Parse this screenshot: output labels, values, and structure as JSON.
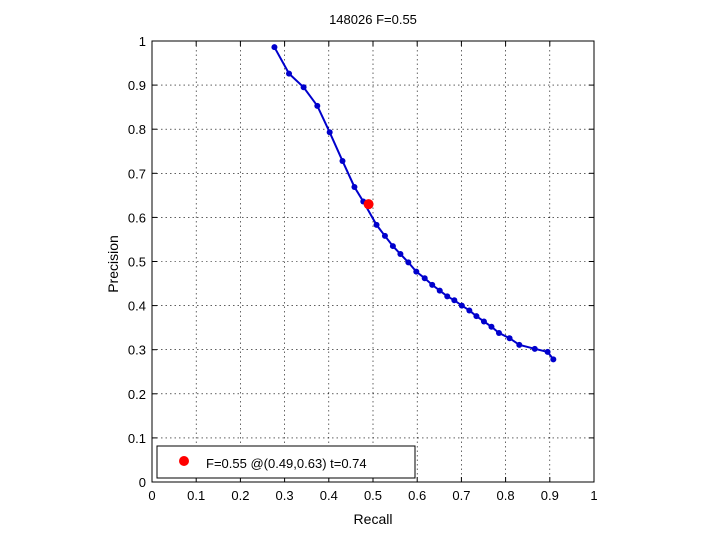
{
  "chart_data": {
    "type": "line",
    "title": "148026 F=0.55",
    "xlabel": "Recall",
    "ylabel": "Precision",
    "xlim": [
      0,
      1
    ],
    "ylim": [
      0,
      1
    ],
    "grid": true,
    "x_ticks": [
      "0",
      "0.1",
      "0.2",
      "0.3",
      "0.4",
      "0.5",
      "0.6",
      "0.7",
      "0.8",
      "0.9",
      "1"
    ],
    "y_ticks": [
      "0",
      "0.1",
      "0.2",
      "0.3",
      "0.4",
      "0.5",
      "0.6",
      "0.7",
      "0.8",
      "0.9",
      "1"
    ],
    "series": [
      {
        "color": "#0000cc",
        "points": [
          [
            0.277,
            0.986
          ],
          [
            0.31,
            0.926
          ],
          [
            0.343,
            0.895
          ],
          [
            0.374,
            0.853
          ],
          [
            0.402,
            0.793
          ],
          [
            0.431,
            0.728
          ],
          [
            0.458,
            0.669
          ],
          [
            0.478,
            0.636
          ],
          [
            0.508,
            0.583
          ],
          [
            0.527,
            0.558
          ],
          [
            0.545,
            0.535
          ],
          [
            0.562,
            0.517
          ],
          [
            0.58,
            0.498
          ],
          [
            0.598,
            0.477
          ],
          [
            0.617,
            0.462
          ],
          [
            0.634,
            0.447
          ],
          [
            0.651,
            0.434
          ],
          [
            0.668,
            0.421
          ],
          [
            0.684,
            0.412
          ],
          [
            0.701,
            0.4
          ],
          [
            0.718,
            0.389
          ],
          [
            0.734,
            0.376
          ],
          [
            0.751,
            0.364
          ],
          [
            0.768,
            0.352
          ],
          [
            0.785,
            0.338
          ],
          [
            0.809,
            0.326
          ],
          [
            0.831,
            0.311
          ],
          [
            0.866,
            0.302
          ],
          [
            0.895,
            0.295
          ],
          [
            0.908,
            0.278
          ]
        ]
      }
    ],
    "highlight": {
      "x": 0.49,
      "y": 0.63,
      "color": "#ff0000"
    },
    "legend": {
      "position": "bottom-left",
      "entries": [
        {
          "label": "F=0.55 @(0.49,0.63) t=0.74",
          "color": "#ff0000"
        }
      ]
    }
  }
}
